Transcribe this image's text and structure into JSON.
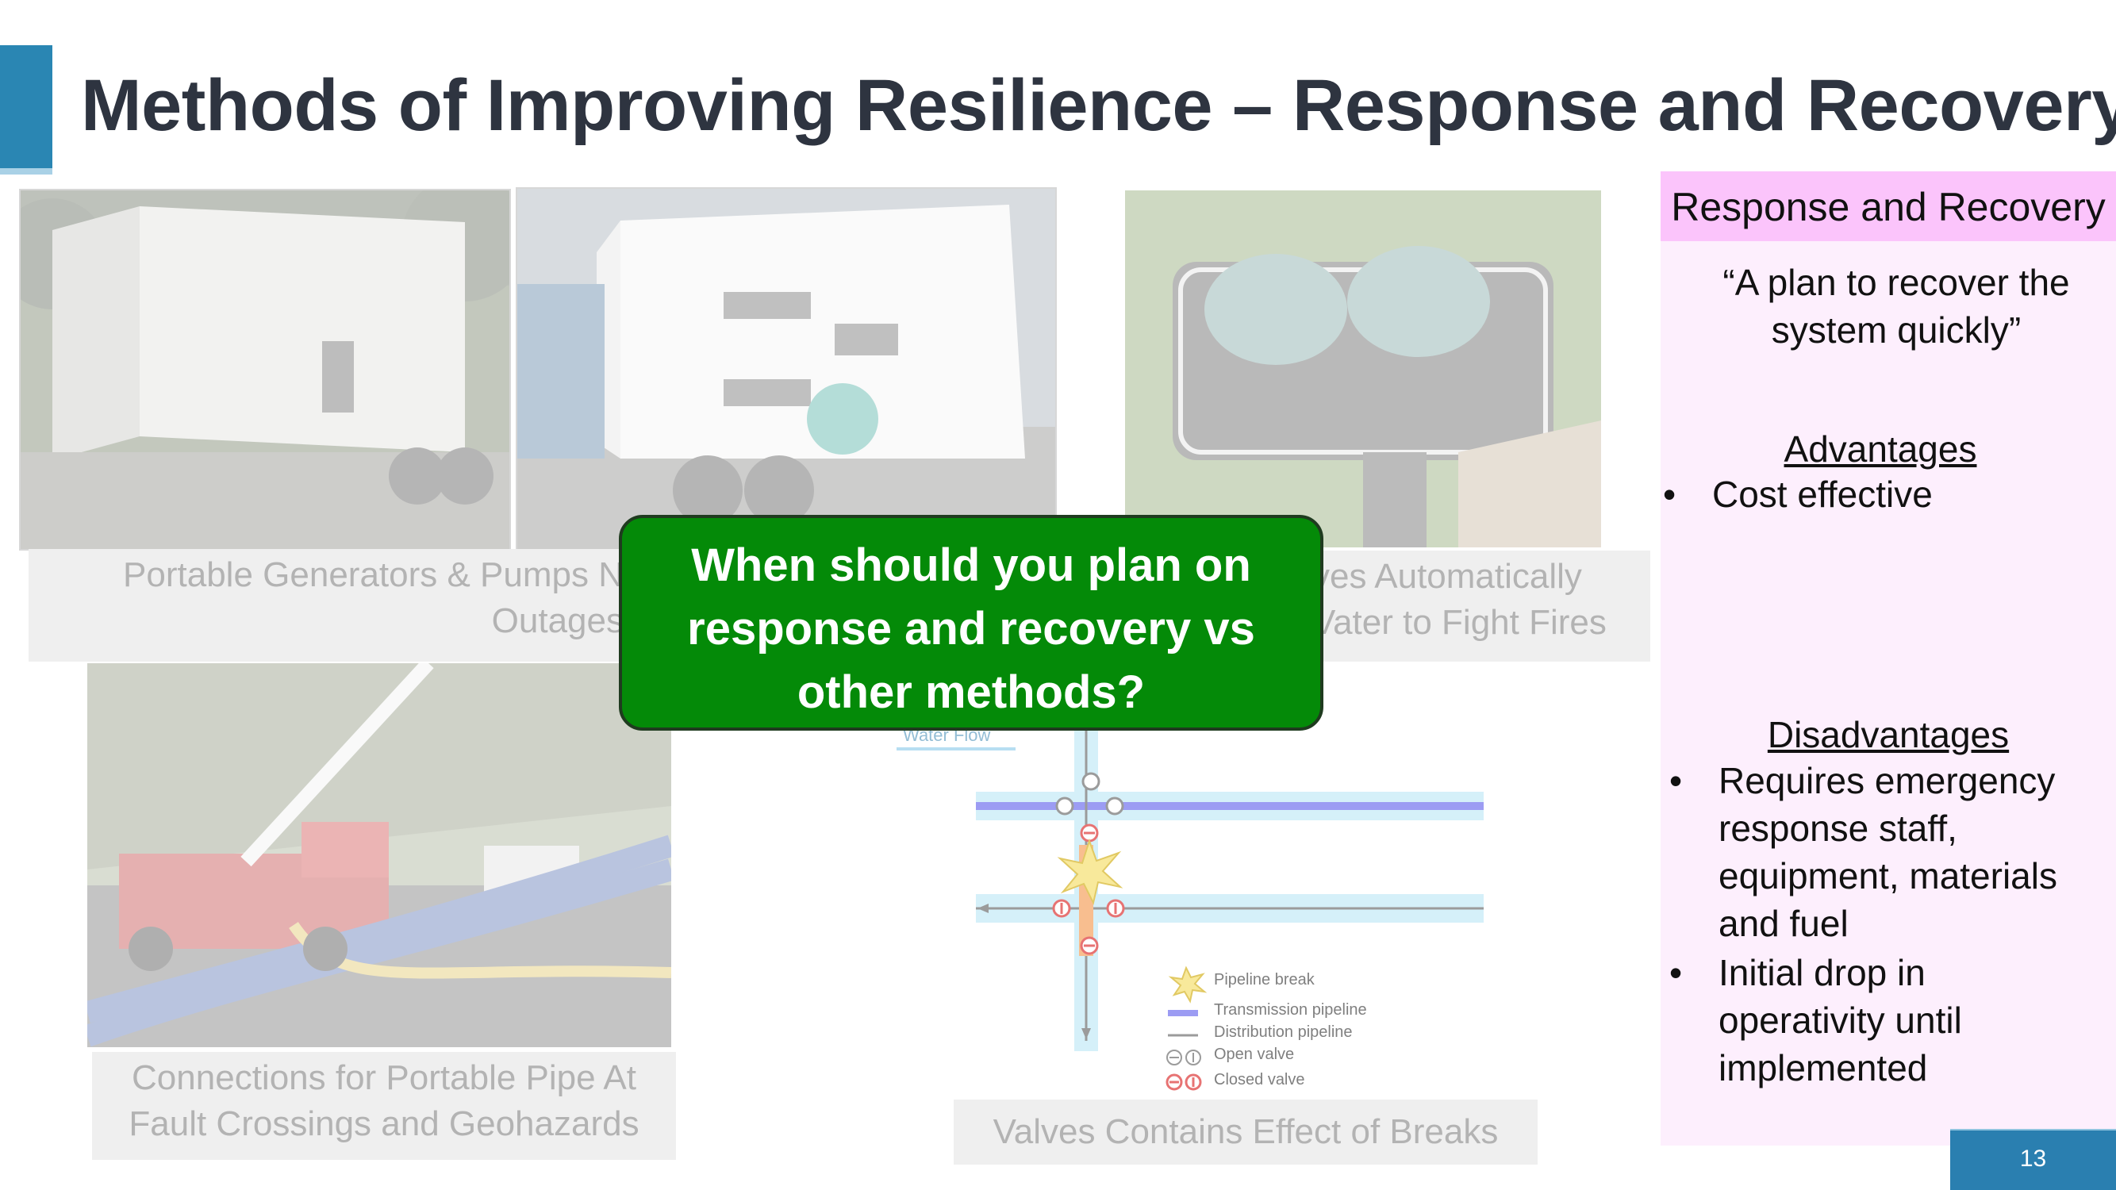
{
  "slide": {
    "title": "Methods of Improving Resilience – Response and Recovery",
    "page_number": "13"
  },
  "captions": {
    "generators": "Portable Generators & Pumps N",
    "generators_line2": "Outages",
    "tanks": "ves Automatically",
    "tanks_line2": "Vater to Fight Fires",
    "pipe": "Connections for Portable Pipe At",
    "pipe_line2": "Fault Crossings and Geohazards",
    "valves": "Valves Contains Effect of Breaks"
  },
  "diagram": {
    "water_flow": "Water Flow",
    "legend": {
      "break": "Pipeline break",
      "transmission": "Transmission pipeline",
      "distribution": "Distribution pipeline",
      "open": "Open valve",
      "closed": "Closed valve"
    }
  },
  "callout": {
    "line1": "When should you plan on",
    "line2": "response and recovery vs",
    "line3": "other methods?"
  },
  "panel": {
    "heading": "Response and Recovery",
    "quote_line1": "“A plan to recover the",
    "quote_line2": "system quickly”",
    "advantages_title": "Advantages",
    "advantages": [
      "Cost effective"
    ],
    "disadvantages_title": "Disadvantages",
    "disadvantages": [
      {
        "lines": [
          "Requires emergency",
          "response staff,",
          "equipment, materials",
          "and fuel"
        ]
      },
      {
        "lines": [
          "Initial drop in",
          "operativity until",
          "implemented"
        ]
      }
    ],
    "bullet": "•"
  },
  "colors": {
    "accent": "#2a86b3",
    "callout_green": "#048a08",
    "panel_bg": "#fdeffd",
    "panel_head": "#fbc4fb",
    "transmission": "#7b7bf0",
    "closed_valve": "#e04545"
  }
}
